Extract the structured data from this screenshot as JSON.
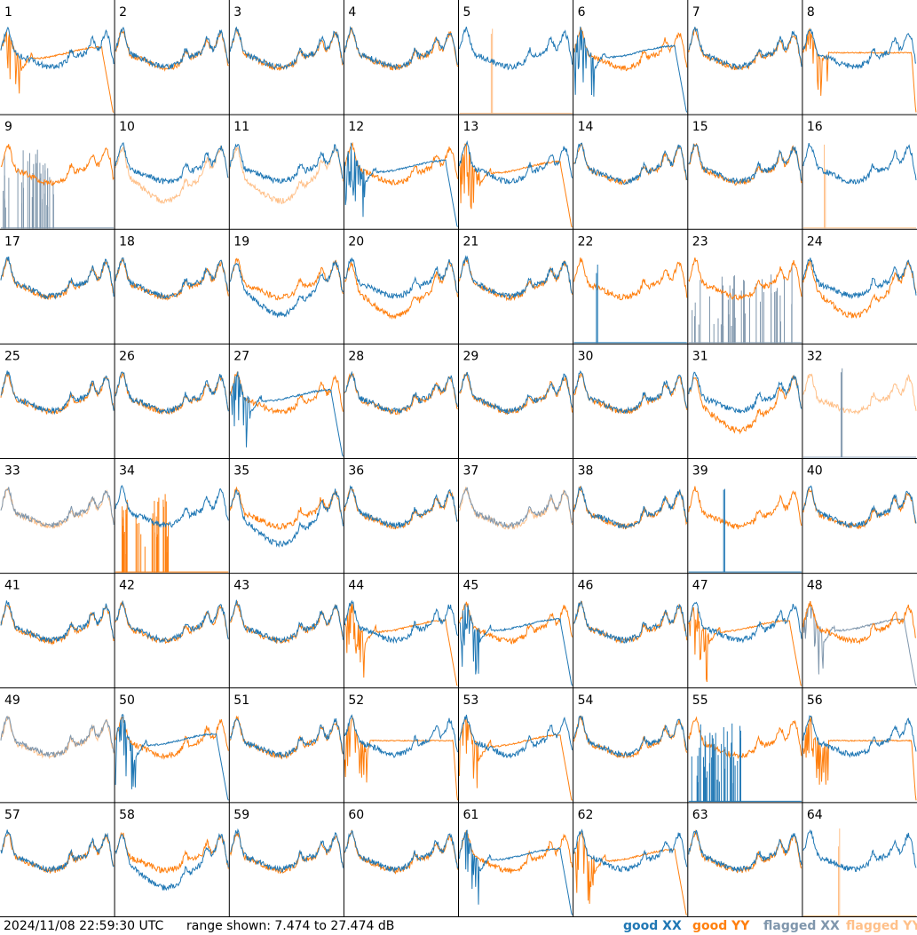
{
  "footer": {
    "timestamp": "2024/11/08 22:59:30 UTC",
    "range": "range shown: 7.474 to 27.474 dB"
  },
  "legend": {
    "good_xx": "good XX",
    "good_yy": "good YY",
    "flagged_xx": "flagged XX",
    "flagged_yy": "flagged YY"
  },
  "colors": {
    "good_xx": "#1f77b4",
    "good_yy": "#ff7f0e",
    "flagged_xx": "#7f96ac",
    "flagged_yy": "#ffc089"
  },
  "chart_data": {
    "type": "line",
    "layout": "8x8 small multiples",
    "ylim_db": [
      7.474,
      27.474
    ],
    "panels": [
      {
        "label": "1",
        "xx": "good",
        "yy": "good",
        "xx_shape": "normal",
        "yy_shape": "rolloff"
      },
      {
        "label": "2",
        "xx": "good",
        "yy": "good",
        "xx_shape": "normal",
        "yy_shape": "normal"
      },
      {
        "label": "3",
        "xx": "good",
        "yy": "good",
        "xx_shape": "normal",
        "yy_shape": "normal"
      },
      {
        "label": "4",
        "xx": "good",
        "yy": "good",
        "xx_shape": "normal",
        "yy_shape": "normal"
      },
      {
        "label": "5",
        "xx": "good",
        "yy": "flagged",
        "xx_shape": "normal",
        "yy_shape": "spike"
      },
      {
        "label": "6",
        "xx": "good",
        "yy": "good",
        "xx_shape": "rolloff",
        "yy_shape": "normal"
      },
      {
        "label": "7",
        "xx": "good",
        "yy": "good",
        "xx_shape": "normal",
        "yy_shape": "normal"
      },
      {
        "label": "8",
        "xx": "good",
        "yy": "good",
        "xx_shape": "normal",
        "yy_shape": "flat"
      },
      {
        "label": "9",
        "xx": "flagged",
        "yy": "good",
        "xx_shape": "spikes",
        "yy_shape": "normal"
      },
      {
        "label": "10",
        "xx": "good",
        "yy": "flagged",
        "xx_shape": "normal",
        "yy_shape": "low"
      },
      {
        "label": "11",
        "xx": "good",
        "yy": "flagged",
        "xx_shape": "normal",
        "yy_shape": "low"
      },
      {
        "label": "12",
        "xx": "good",
        "yy": "good",
        "xx_shape": "rolloff",
        "yy_shape": "normal"
      },
      {
        "label": "13",
        "xx": "good",
        "yy": "good",
        "xx_shape": "normal",
        "yy_shape": "rolloff"
      },
      {
        "label": "14",
        "xx": "good",
        "yy": "good",
        "xx_shape": "normal",
        "yy_shape": "normal"
      },
      {
        "label": "15",
        "xx": "good",
        "yy": "good",
        "xx_shape": "normal",
        "yy_shape": "normal"
      },
      {
        "label": "16",
        "xx": "good",
        "yy": "flagged",
        "xx_shape": "normal",
        "yy_shape": "spike"
      },
      {
        "label": "17",
        "xx": "good",
        "yy": "good",
        "xx_shape": "normal",
        "yy_shape": "normal"
      },
      {
        "label": "18",
        "xx": "good",
        "yy": "good",
        "xx_shape": "normal",
        "yy_shape": "normal"
      },
      {
        "label": "19",
        "xx": "good",
        "yy": "good",
        "xx_shape": "low",
        "yy_shape": "normal"
      },
      {
        "label": "20",
        "xx": "good",
        "yy": "good",
        "xx_shape": "normal",
        "yy_shape": "low"
      },
      {
        "label": "21",
        "xx": "good",
        "yy": "good",
        "xx_shape": "normal",
        "yy_shape": "normal"
      },
      {
        "label": "22",
        "xx": "good",
        "yy": "good",
        "xx_shape": "spike",
        "yy_shape": "normal"
      },
      {
        "label": "23",
        "xx": "flagged",
        "yy": "good",
        "xx_shape": "spikes",
        "yy_shape": "normal"
      },
      {
        "label": "24",
        "xx": "good",
        "yy": "good",
        "xx_shape": "normal",
        "yy_shape": "low"
      },
      {
        "label": "25",
        "xx": "good",
        "yy": "good",
        "xx_shape": "normal",
        "yy_shape": "normal"
      },
      {
        "label": "26",
        "xx": "good",
        "yy": "good",
        "xx_shape": "normal",
        "yy_shape": "normal"
      },
      {
        "label": "27",
        "xx": "good",
        "yy": "good",
        "xx_shape": "rolloff",
        "yy_shape": "normal"
      },
      {
        "label": "28",
        "xx": "good",
        "yy": "good",
        "xx_shape": "normal",
        "yy_shape": "normal"
      },
      {
        "label": "29",
        "xx": "good",
        "yy": "good",
        "xx_shape": "normal",
        "yy_shape": "normal"
      },
      {
        "label": "30",
        "xx": "good",
        "yy": "good",
        "xx_shape": "normal",
        "yy_shape": "normal"
      },
      {
        "label": "31",
        "xx": "good",
        "yy": "good",
        "xx_shape": "normal",
        "yy_shape": "low"
      },
      {
        "label": "32",
        "xx": "flagged",
        "yy": "flagged",
        "xx_shape": "spike",
        "yy_shape": "normal"
      },
      {
        "label": "33",
        "xx": "flagged",
        "yy": "flagged",
        "xx_shape": "normal",
        "yy_shape": "normal"
      },
      {
        "label": "34",
        "xx": "good",
        "yy": "good",
        "xx_shape": "normal",
        "yy_shape": "spikes"
      },
      {
        "label": "35",
        "xx": "good",
        "yy": "good",
        "xx_shape": "low",
        "yy_shape": "normal"
      },
      {
        "label": "36",
        "xx": "good",
        "yy": "good",
        "xx_shape": "normal",
        "yy_shape": "normal"
      },
      {
        "label": "37",
        "xx": "flagged",
        "yy": "flagged",
        "xx_shape": "normal",
        "yy_shape": "normal"
      },
      {
        "label": "38",
        "xx": "good",
        "yy": "good",
        "xx_shape": "normal",
        "yy_shape": "normal"
      },
      {
        "label": "39",
        "xx": "good",
        "yy": "good",
        "xx_shape": "spike",
        "yy_shape": "normal"
      },
      {
        "label": "40",
        "xx": "good",
        "yy": "good",
        "xx_shape": "normal",
        "yy_shape": "normal"
      },
      {
        "label": "41",
        "xx": "good",
        "yy": "good",
        "xx_shape": "normal",
        "yy_shape": "normal"
      },
      {
        "label": "42",
        "xx": "good",
        "yy": "good",
        "xx_shape": "normal",
        "yy_shape": "normal"
      },
      {
        "label": "43",
        "xx": "good",
        "yy": "good",
        "xx_shape": "normal",
        "yy_shape": "normal"
      },
      {
        "label": "44",
        "xx": "good",
        "yy": "good",
        "xx_shape": "normal",
        "yy_shape": "rolloff"
      },
      {
        "label": "45",
        "xx": "good",
        "yy": "good",
        "xx_shape": "rolloff",
        "yy_shape": "normal"
      },
      {
        "label": "46",
        "xx": "good",
        "yy": "good",
        "xx_shape": "normal",
        "yy_shape": "normal"
      },
      {
        "label": "47",
        "xx": "good",
        "yy": "good",
        "xx_shape": "normal",
        "yy_shape": "rolloff"
      },
      {
        "label": "48",
        "xx": "flagged",
        "yy": "good",
        "xx_shape": "rolloff",
        "yy_shape": "normal"
      },
      {
        "label": "49",
        "xx": "flagged",
        "yy": "flagged",
        "xx_shape": "normal",
        "yy_shape": "normal"
      },
      {
        "label": "50",
        "xx": "good",
        "yy": "good",
        "xx_shape": "rolloff",
        "yy_shape": "normal"
      },
      {
        "label": "51",
        "xx": "good",
        "yy": "good",
        "xx_shape": "normal",
        "yy_shape": "normal"
      },
      {
        "label": "52",
        "xx": "good",
        "yy": "good",
        "xx_shape": "normal",
        "yy_shape": "flat"
      },
      {
        "label": "53",
        "xx": "good",
        "yy": "good",
        "xx_shape": "normal",
        "yy_shape": "rolloff"
      },
      {
        "label": "54",
        "xx": "good",
        "yy": "good",
        "xx_shape": "normal",
        "yy_shape": "normal"
      },
      {
        "label": "55",
        "xx": "good",
        "yy": "good",
        "xx_shape": "spikes",
        "yy_shape": "normal"
      },
      {
        "label": "56",
        "xx": "good",
        "yy": "good",
        "xx_shape": "normal",
        "yy_shape": "flat"
      },
      {
        "label": "57",
        "xx": "good",
        "yy": "good",
        "xx_shape": "normal",
        "yy_shape": "normal"
      },
      {
        "label": "58",
        "xx": "good",
        "yy": "good",
        "xx_shape": "low",
        "yy_shape": "normal"
      },
      {
        "label": "59",
        "xx": "good",
        "yy": "good",
        "xx_shape": "normal",
        "yy_shape": "normal"
      },
      {
        "label": "60",
        "xx": "good",
        "yy": "good",
        "xx_shape": "normal",
        "yy_shape": "normal"
      },
      {
        "label": "61",
        "xx": "good",
        "yy": "good",
        "xx_shape": "rolloff",
        "yy_shape": "normal"
      },
      {
        "label": "62",
        "xx": "good",
        "yy": "good",
        "xx_shape": "normal",
        "yy_shape": "rolloff"
      },
      {
        "label": "63",
        "xx": "good",
        "yy": "good",
        "xx_shape": "normal",
        "yy_shape": "normal"
      },
      {
        "label": "64",
        "xx": "good",
        "yy": "flagged",
        "xx_shape": "normal",
        "yy_shape": "spike"
      }
    ]
  }
}
